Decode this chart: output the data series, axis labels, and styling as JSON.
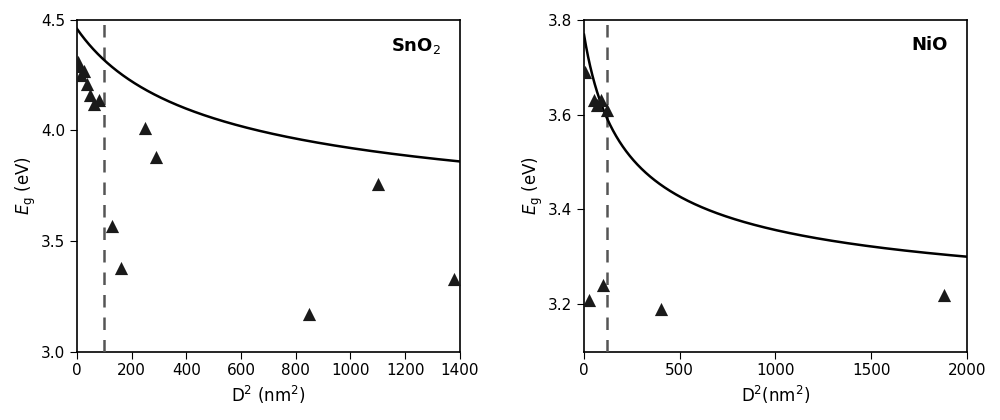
{
  "sno2": {
    "title": "SnO$_2$",
    "scatter_x": [
      4,
      9,
      16,
      25,
      36,
      49,
      64,
      81,
      130,
      160,
      250,
      290,
      850,
      1100,
      1380
    ],
    "scatter_y": [
      4.31,
      4.29,
      4.25,
      4.27,
      4.21,
      4.16,
      4.12,
      4.14,
      3.57,
      3.38,
      4.01,
      3.88,
      3.17,
      3.76,
      3.33
    ],
    "dashed_x": 100,
    "xlim": [
      0,
      1400
    ],
    "ylim": [
      3.0,
      4.5
    ],
    "xticks": [
      0,
      200,
      400,
      600,
      800,
      1000,
      1200,
      1400
    ],
    "yticks": [
      3.0,
      3.5,
      4.0,
      4.5
    ],
    "xlabel": "D$^2$ (nm$^2$)",
    "ylabel": "$E_{\\mathrm{g}}$ (eV)",
    "curve_Einf": 3.44,
    "curve_C": 1.02,
    "curve_k": 0.0035
  },
  "nio": {
    "title": "NiO",
    "scatter_x": [
      4,
      25,
      50,
      70,
      90,
      100,
      120,
      400,
      1880
    ],
    "scatter_y": [
      3.69,
      3.21,
      3.63,
      3.62,
      3.63,
      3.24,
      3.61,
      3.19,
      3.22
    ],
    "dashed_x": 120,
    "xlim": [
      0,
      2000
    ],
    "ylim": [
      3.1,
      3.8
    ],
    "xticks": [
      0,
      500,
      1000,
      1500,
      2000
    ],
    "yticks": [
      3.2,
      3.4,
      3.6,
      3.8
    ],
    "xlabel": "D$^2$(nm$^2$)",
    "ylabel": "$E_{\\mathrm{g}}$ (eV)",
    "curve_Einf": 3.15,
    "curve_C": 0.62,
    "curve_k": 0.008
  },
  "marker_color": "#1a1a1a",
  "line_color": "#000000",
  "dashed_color": "#555555",
  "bg_color": "#ffffff"
}
